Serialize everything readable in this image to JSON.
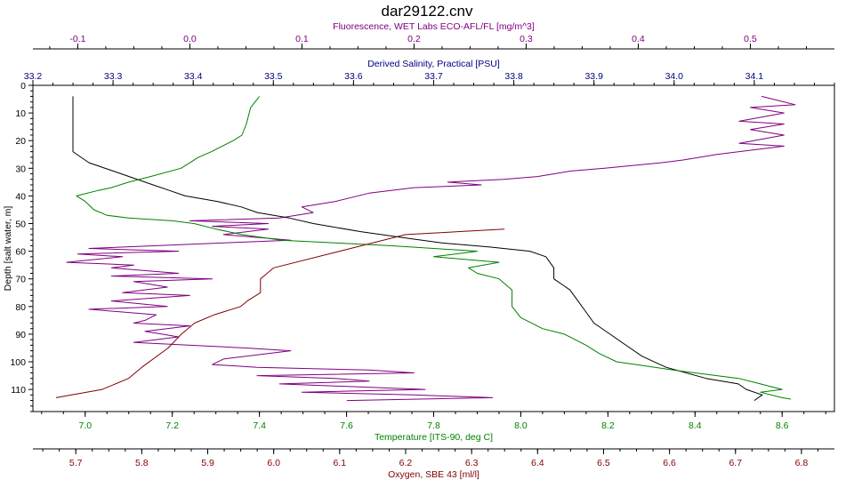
{
  "chart_data": {
    "type": "line",
    "title": "dar29122.cnv",
    "y_axis": {
      "label": "Depth [salt water, m]",
      "range": [
        0,
        118
      ],
      "ticks": [
        0,
        10,
        20,
        30,
        40,
        50,
        60,
        70,
        80,
        90,
        100,
        110
      ],
      "inverted": true,
      "color": "#000000"
    },
    "x_axes": [
      {
        "key": "fluorescence",
        "label": "Fluorescence, WET Labs ECO-AFL/FL [mg/m^3]",
        "position": "top-outer",
        "range": [
          -0.14,
          0.575
        ],
        "ticks": [
          -0.1,
          0.0,
          0.1,
          0.2,
          0.3,
          0.4,
          0.5
        ],
        "tick_labels": [
          "-0.1",
          "0.0",
          "0.1",
          "0.2",
          "0.3",
          "0.4",
          "0.5"
        ],
        "color": "#800080"
      },
      {
        "key": "salinity",
        "label": "Derived Salinity, Practical [PSU]",
        "position": "top-inner",
        "range": [
          33.2,
          34.2
        ],
        "ticks": [
          33.2,
          33.3,
          33.4,
          33.5,
          33.6,
          33.7,
          33.8,
          33.9,
          34.0,
          34.1
        ],
        "tick_labels": [
          "33.2",
          "33.3",
          "33.4",
          "33.5",
          "33.6",
          "33.7",
          "33.8",
          "33.9",
          "34.0",
          "34.1"
        ],
        "color": "#000080"
      },
      {
        "key": "temperature",
        "label": "Temperature [ITS-90, deg C]",
        "position": "bottom-inner",
        "range": [
          6.88,
          8.72
        ],
        "ticks": [
          7.0,
          7.2,
          7.4,
          7.6,
          7.8,
          8.0,
          8.2,
          8.4,
          8.6
        ],
        "tick_labels": [
          "7.0",
          "7.2",
          "7.4",
          "7.6",
          "7.8",
          "8.0",
          "8.2",
          "8.4",
          "8.6"
        ],
        "color": "#008000"
      },
      {
        "key": "oxygen",
        "label": "Oxygen, SBE 43 [ml/l]",
        "position": "bottom-outer",
        "range": [
          5.635,
          6.85
        ],
        "ticks": [
          5.7,
          5.8,
          5.9,
          6.0,
          6.1,
          6.2,
          6.3,
          6.4,
          6.5,
          6.6,
          6.7,
          6.8
        ],
        "tick_labels": [
          "5.7",
          "5.8",
          "5.9",
          "6.0",
          "6.1",
          "6.2",
          "6.3",
          "6.4",
          "6.5",
          "6.6",
          "6.7",
          "6.8"
        ],
        "color": "#800000"
      }
    ],
    "series": [
      {
        "axis": "fluorescence",
        "color": "#800080",
        "points": [
          [
            0.51,
            4
          ],
          [
            0.54,
            7
          ],
          [
            0.5,
            8
          ],
          [
            0.53,
            10
          ],
          [
            0.49,
            13
          ],
          [
            0.53,
            14
          ],
          [
            0.5,
            16
          ],
          [
            0.53,
            18
          ],
          [
            0.49,
            21
          ],
          [
            0.53,
            22
          ],
          [
            0.47,
            25
          ],
          [
            0.44,
            27
          ],
          [
            0.42,
            28
          ],
          [
            0.37,
            30
          ],
          [
            0.34,
            31
          ],
          [
            0.31,
            33
          ],
          [
            0.28,
            34
          ],
          [
            0.23,
            35
          ],
          [
            0.26,
            36
          ],
          [
            0.2,
            37
          ],
          [
            0.16,
            39
          ],
          [
            0.13,
            42
          ],
          [
            0.1,
            44
          ],
          [
            0.11,
            46
          ],
          [
            0.08,
            48
          ],
          [
            0.0,
            49
          ],
          [
            0.07,
            50
          ],
          [
            0.02,
            51
          ],
          [
            0.07,
            52
          ],
          [
            0.03,
            54
          ],
          [
            0.09,
            56
          ],
          [
            -0.09,
            59
          ],
          [
            -0.01,
            60
          ],
          [
            -0.1,
            61
          ],
          [
            -0.06,
            62
          ],
          [
            -0.11,
            64
          ],
          [
            -0.05,
            65
          ],
          [
            -0.07,
            66
          ],
          [
            -0.01,
            68
          ],
          [
            -0.07,
            69
          ],
          [
            0.02,
            70
          ],
          [
            -0.05,
            71
          ],
          [
            -0.02,
            73
          ],
          [
            -0.06,
            75
          ],
          [
            0.0,
            76
          ],
          [
            -0.07,
            78
          ],
          [
            -0.02,
            80
          ],
          [
            -0.09,
            81
          ],
          [
            -0.03,
            83
          ],
          [
            -0.04,
            85
          ],
          [
            -0.05,
            86
          ],
          [
            -0.0,
            87
          ],
          [
            -0.04,
            89
          ],
          [
            -0.01,
            91
          ],
          [
            -0.05,
            93
          ],
          [
            0.05,
            95
          ],
          [
            0.09,
            96
          ],
          [
            0.03,
            99
          ],
          [
            0.02,
            101
          ],
          [
            0.06,
            102
          ],
          [
            0.16,
            103
          ],
          [
            0.2,
            104
          ],
          [
            0.06,
            105
          ],
          [
            0.13,
            106
          ],
          [
            0.16,
            107
          ],
          [
            0.08,
            108
          ],
          [
            0.21,
            110
          ],
          [
            0.1,
            111
          ],
          [
            0.2,
            112
          ],
          [
            0.27,
            113
          ],
          [
            0.14,
            114
          ]
        ]
      },
      {
        "axis": "salinity",
        "color": "#000000",
        "points": [
          [
            33.25,
            4
          ],
          [
            33.25,
            10
          ],
          [
            33.25,
            18
          ],
          [
            33.25,
            24
          ],
          [
            33.27,
            28
          ],
          [
            33.3,
            31
          ],
          [
            33.32,
            33
          ],
          [
            33.35,
            36
          ],
          [
            33.37,
            38
          ],
          [
            33.39,
            40
          ],
          [
            33.43,
            42
          ],
          [
            33.46,
            44
          ],
          [
            33.48,
            46
          ],
          [
            33.52,
            48
          ],
          [
            33.55,
            50
          ],
          [
            33.61,
            53
          ],
          [
            33.66,
            55
          ],
          [
            33.71,
            57
          ],
          [
            33.77,
            58.5
          ],
          [
            33.82,
            60
          ],
          [
            33.84,
            62
          ],
          [
            33.85,
            66
          ],
          [
            33.85,
            70
          ],
          [
            33.87,
            74
          ],
          [
            33.88,
            78
          ],
          [
            33.89,
            82
          ],
          [
            33.9,
            86
          ],
          [
            33.92,
            90
          ],
          [
            33.94,
            94
          ],
          [
            33.96,
            98
          ],
          [
            33.99,
            102
          ],
          [
            34.04,
            106
          ],
          [
            34.08,
            108
          ],
          [
            34.09,
            110
          ],
          [
            34.11,
            112
          ],
          [
            34.1,
            114
          ]
        ]
      },
      {
        "axis": "temperature",
        "color": "#008000",
        "points": [
          [
            7.4,
            4
          ],
          [
            7.38,
            8
          ],
          [
            7.37,
            14
          ],
          [
            7.36,
            18
          ],
          [
            7.34,
            20
          ],
          [
            7.29,
            24
          ],
          [
            7.26,
            26
          ],
          [
            7.22,
            30
          ],
          [
            7.15,
            33
          ],
          [
            7.1,
            35
          ],
          [
            7.06,
            37
          ],
          [
            7.03,
            38
          ],
          [
            6.98,
            40
          ],
          [
            7.0,
            42
          ],
          [
            7.02,
            45
          ],
          [
            7.05,
            47
          ],
          [
            7.1,
            48
          ],
          [
            7.2,
            49
          ],
          [
            7.25,
            50
          ],
          [
            7.3,
            52
          ],
          [
            7.36,
            54
          ],
          [
            7.45,
            56
          ],
          [
            7.7,
            58
          ],
          [
            7.9,
            60
          ],
          [
            7.8,
            62
          ],
          [
            7.95,
            64
          ],
          [
            7.88,
            66
          ],
          [
            7.9,
            68
          ],
          [
            7.95,
            70
          ],
          [
            7.98,
            74
          ],
          [
            7.98,
            80
          ],
          [
            8.0,
            84
          ],
          [
            8.05,
            88
          ],
          [
            8.1,
            90
          ],
          [
            8.15,
            94
          ],
          [
            8.18,
            97
          ],
          [
            8.22,
            100
          ],
          [
            8.35,
            103
          ],
          [
            8.5,
            106
          ],
          [
            8.55,
            108
          ],
          [
            8.6,
            110
          ],
          [
            8.55,
            111
          ],
          [
            8.6,
            113
          ],
          [
            8.62,
            113.5
          ]
        ]
      },
      {
        "axis": "oxygen",
        "color": "#800000",
        "points": [
          [
            6.35,
            52
          ],
          [
            6.2,
            54
          ],
          [
            6.1,
            60
          ],
          [
            6.0,
            66
          ],
          [
            5.98,
            70
          ],
          [
            5.98,
            75
          ],
          [
            5.96,
            78
          ],
          [
            5.95,
            80
          ],
          [
            5.91,
            83
          ],
          [
            5.88,
            86
          ],
          [
            5.86,
            90
          ],
          [
            5.84,
            95
          ],
          [
            5.8,
            102
          ],
          [
            5.78,
            106
          ],
          [
            5.74,
            110
          ],
          [
            5.67,
            113
          ]
        ]
      }
    ],
    "grid": false,
    "legend": "none"
  }
}
